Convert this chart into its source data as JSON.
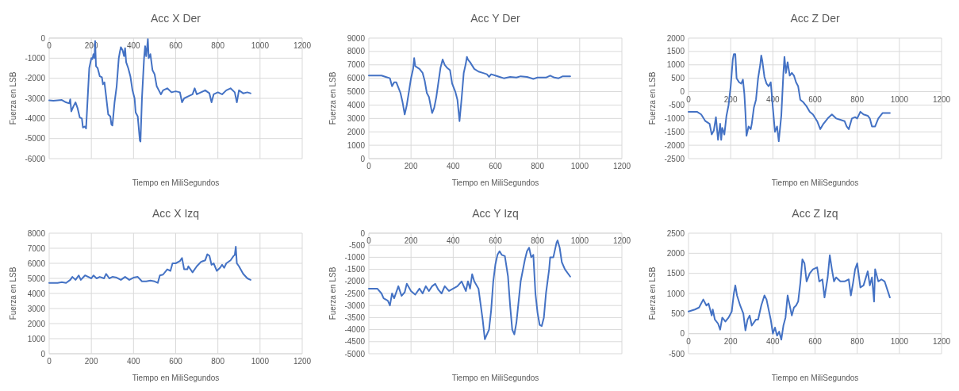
{
  "chart_data": [
    {
      "type": "line",
      "title": "Acc X Der",
      "xlabel": "Tiempo en MiliSegundos",
      "ylabel": "Fuerza en LSB",
      "xlim": [
        0,
        1200
      ],
      "xticks": [
        0,
        200,
        400,
        600,
        800,
        1000,
        1200
      ],
      "ylim": [
        -6000,
        0
      ],
      "yticks": [
        -6000,
        -5000,
        -4000,
        -3000,
        -2000,
        -1000,
        0
      ],
      "grid": true,
      "x": [
        0,
        20,
        40,
        60,
        80,
        95,
        100,
        105,
        115,
        125,
        135,
        145,
        155,
        160,
        170,
        175,
        180,
        190,
        200,
        205,
        210,
        215,
        218,
        222,
        230,
        240,
        250,
        255,
        262,
        270,
        280,
        290,
        295,
        300,
        310,
        320,
        330,
        335,
        340,
        348,
        355,
        360,
        365,
        375,
        385,
        395,
        405,
        410,
        420,
        430,
        433,
        440,
        450,
        455,
        460,
        465,
        468,
        472,
        480,
        490,
        500,
        510,
        520,
        530,
        540,
        560,
        580,
        600,
        620,
        630,
        640,
        660,
        680,
        690,
        700,
        720,
        740,
        760,
        770,
        780,
        800,
        820,
        840,
        860,
        880,
        890,
        900,
        920,
        940,
        955
      ],
      "series": [
        {
          "color": "#4472c4",
          "values": [
            -3100,
            -3120,
            -3100,
            -3080,
            -3200,
            -3250,
            -3050,
            -3650,
            -3400,
            -3200,
            -3500,
            -3950,
            -4000,
            -4450,
            -4400,
            -4500,
            -3500,
            -1500,
            -1000,
            -1050,
            -800,
            -1000,
            -150,
            -1400,
            -1500,
            -1900,
            -1950,
            -2300,
            -2200,
            -2900,
            -3800,
            -3900,
            -4300,
            -4350,
            -3200,
            -2400,
            -1000,
            -700,
            -450,
            -600,
            -900,
            -500,
            -1200,
            -1500,
            -1900,
            -2600,
            -3000,
            -3700,
            -3900,
            -5100,
            -5150,
            -3000,
            -1000,
            -400,
            -900,
            -400,
            -50,
            -1000,
            -800,
            -1600,
            -1800,
            -2400,
            -2600,
            -2800,
            -2600,
            -2500,
            -2700,
            -2650,
            -2700,
            -3200,
            -3000,
            -2900,
            -2800,
            -2500,
            -2800,
            -2700,
            -2600,
            -2750,
            -3200,
            -2800,
            -2700,
            -2800,
            -2600,
            -2500,
            -2700,
            -3200,
            -2600,
            -2750,
            -2700,
            -2750
          ]
        }
      ]
    },
    {
      "type": "line",
      "title": "Acc Y Der",
      "xlabel": "Tiempo en MiliSegundos",
      "ylabel": "Fuerza en LSB",
      "xlim": [
        0,
        1200
      ],
      "xticks": [
        0,
        200,
        400,
        600,
        800,
        1000,
        1200
      ],
      "ylim": [
        0,
        9000
      ],
      "yticks": [
        0,
        1000,
        2000,
        3000,
        4000,
        5000,
        6000,
        7000,
        8000,
        9000
      ],
      "grid": true,
      "x": [
        0,
        60,
        80,
        100,
        110,
        120,
        130,
        140,
        150,
        160,
        170,
        180,
        190,
        200,
        210,
        215,
        220,
        240,
        255,
        265,
        275,
        285,
        300,
        310,
        320,
        330,
        340,
        350,
        360,
        370,
        385,
        395,
        410,
        420,
        430,
        440,
        450,
        460,
        465,
        470,
        480,
        500,
        520,
        540,
        560,
        570,
        580,
        600,
        620,
        640,
        670,
        700,
        720,
        750,
        780,
        800,
        820,
        840,
        860,
        880,
        900,
        920,
        955
      ],
      "series": [
        {
          "color": "#4472c4",
          "values": [
            6200,
            6200,
            6100,
            6000,
            5400,
            5700,
            5700,
            5300,
            4900,
            4200,
            3300,
            4000,
            5000,
            6000,
            6700,
            7500,
            6900,
            6700,
            6400,
            5800,
            4900,
            4600,
            3400,
            3800,
            4600,
            5700,
            6800,
            7400,
            7000,
            6800,
            6600,
            5600,
            5000,
            4400,
            2800,
            4500,
            6400,
            7100,
            7600,
            7400,
            7200,
            6700,
            6500,
            6400,
            6300,
            6100,
            6300,
            6200,
            6100,
            6000,
            6100,
            6050,
            6150,
            6100,
            5950,
            6050,
            6050,
            6050,
            6200,
            6050,
            6000,
            6150,
            6150
          ]
        }
      ]
    },
    {
      "type": "line",
      "title": "Acc Z Der",
      "xlabel": "Tiempo en MiliSegundos",
      "ylabel": "Fuerza en LSB",
      "xlim": [
        0,
        1200
      ],
      "xticks": [
        0,
        200,
        400,
        600,
        800,
        1000,
        1200
      ],
      "ylim": [
        -2500,
        2000
      ],
      "yticks": [
        -2500,
        -2000,
        -1500,
        -1000,
        -500,
        0,
        500,
        1000,
        1500,
        2000
      ],
      "grid": true,
      "x": [
        0,
        40,
        60,
        80,
        100,
        110,
        120,
        130,
        140,
        150,
        155,
        160,
        170,
        180,
        190,
        200,
        210,
        215,
        222,
        228,
        240,
        250,
        258,
        265,
        270,
        275,
        285,
        295,
        300,
        310,
        320,
        330,
        340,
        345,
        350,
        360,
        370,
        380,
        390,
        400,
        410,
        420,
        428,
        440,
        450,
        455,
        462,
        470,
        480,
        490,
        500,
        510,
        520,
        530,
        545,
        560,
        575,
        590,
        610,
        625,
        640,
        660,
        680,
        700,
        720,
        740,
        750,
        760,
        775,
        790,
        800,
        815,
        830,
        850,
        860,
        870,
        885,
        900,
        920,
        935,
        955
      ],
      "series": [
        {
          "color": "#4472c4",
          "values": [
            -750,
            -750,
            -850,
            -1100,
            -1200,
            -1600,
            -1450,
            -950,
            -1800,
            -1200,
            -1800,
            -1350,
            -1600,
            -900,
            -500,
            200,
            1200,
            1400,
            1400,
            500,
            350,
            300,
            450,
            -100,
            -800,
            -1650,
            -1300,
            -1400,
            -1200,
            -600,
            -300,
            500,
            1000,
            1350,
            1150,
            550,
            300,
            200,
            350,
            -600,
            -1500,
            -1300,
            -1850,
            -900,
            700,
            1300,
            700,
            1100,
            600,
            700,
            600,
            350,
            200,
            -300,
            -400,
            -550,
            -750,
            -850,
            -1100,
            -1400,
            -1200,
            -1000,
            -850,
            -1000,
            -1050,
            -1100,
            -1300,
            -1400,
            -1000,
            -950,
            -1000,
            -750,
            -850,
            -900,
            -1000,
            -1300,
            -1300,
            -1000,
            -800,
            -800,
            -800
          ]
        }
      ]
    },
    {
      "type": "line",
      "title": "Acc X Izq",
      "xlabel": "Tiempo en MiliSegundos",
      "ylabel": "Fuerza en LSB",
      "xlim": [
        0,
        1200
      ],
      "xticks": [
        0,
        200,
        400,
        600,
        800,
        1000,
        1200
      ],
      "ylim": [
        0,
        8000
      ],
      "yticks": [
        0,
        1000,
        2000,
        3000,
        4000,
        5000,
        6000,
        7000,
        8000
      ],
      "grid": true,
      "x": [
        0,
        40,
        60,
        80,
        100,
        110,
        125,
        140,
        150,
        170,
        200,
        210,
        225,
        240,
        260,
        270,
        285,
        300,
        320,
        340,
        360,
        380,
        400,
        420,
        440,
        460,
        480,
        500,
        515,
        525,
        540,
        560,
        575,
        585,
        600,
        620,
        630,
        640,
        655,
        660,
        680,
        700,
        720,
        740,
        750,
        760,
        770,
        780,
        795,
        810,
        820,
        830,
        840,
        860,
        875,
        880,
        885,
        890,
        900,
        920,
        940,
        955
      ],
      "series": [
        {
          "color": "#4472c4",
          "values": [
            4700,
            4700,
            4750,
            4700,
            4900,
            5100,
            4900,
            5200,
            4900,
            5200,
            5000,
            5200,
            5000,
            5100,
            5000,
            5300,
            5000,
            5100,
            5050,
            4900,
            5100,
            4900,
            5050,
            5100,
            4800,
            4800,
            4850,
            4800,
            4700,
            5200,
            5250,
            5600,
            5500,
            6000,
            6000,
            6150,
            6350,
            5600,
            5600,
            5800,
            5400,
            5800,
            6100,
            6200,
            6600,
            6500,
            5900,
            6000,
            5500,
            5700,
            5900,
            5700,
            6000,
            6200,
            6500,
            6550,
            7100,
            6000,
            5800,
            5300,
            5000,
            4900
          ]
        }
      ]
    },
    {
      "type": "line",
      "title": "Acc Y Izq",
      "xlabel": "Tiempo en MiliSegundos",
      "ylabel": "Fuerza en LSB",
      "xlim": [
        0,
        1200
      ],
      "xticks": [
        0,
        200,
        400,
        600,
        800,
        1000,
        1200
      ],
      "ylim": [
        -5000,
        0
      ],
      "yticks": [
        -5000,
        -4500,
        -4000,
        -3500,
        -3000,
        -2500,
        -2000,
        -1500,
        -1000,
        -500,
        0
      ],
      "grid": true,
      "x": [
        0,
        20,
        40,
        60,
        70,
        90,
        100,
        110,
        120,
        140,
        155,
        170,
        180,
        200,
        220,
        240,
        255,
        270,
        285,
        300,
        315,
        330,
        345,
        360,
        380,
        400,
        420,
        440,
        460,
        470,
        480,
        490,
        500,
        520,
        540,
        550,
        560,
        570,
        580,
        590,
        600,
        610,
        620,
        630,
        645,
        660,
        670,
        680,
        690,
        700,
        720,
        740,
        750,
        760,
        770,
        780,
        790,
        800,
        810,
        820,
        830,
        840,
        855,
        860,
        875,
        890,
        895,
        905,
        915,
        930,
        955
      ],
      "series": [
        {
          "color": "#4472c4",
          "values": [
            -2300,
            -2300,
            -2300,
            -2500,
            -2700,
            -2800,
            -3000,
            -2500,
            -2700,
            -2200,
            -2600,
            -2450,
            -2100,
            -2400,
            -2550,
            -2300,
            -2500,
            -2200,
            -2400,
            -2200,
            -2100,
            -2350,
            -2500,
            -2200,
            -2400,
            -2300,
            -2200,
            -2000,
            -2400,
            -2000,
            -2300,
            -1700,
            -2000,
            -2300,
            -3600,
            -4400,
            -4200,
            -4000,
            -3200,
            -2000,
            -1300,
            -900,
            -750,
            -900,
            -950,
            -1800,
            -3000,
            -4000,
            -4200,
            -3700,
            -2000,
            -1100,
            -750,
            -600,
            -1000,
            -900,
            -2500,
            -3300,
            -3800,
            -3850,
            -3500,
            -2500,
            -1500,
            -1000,
            -1000,
            -400,
            -300,
            -600,
            -1200,
            -1500,
            -1800
          ]
        }
      ]
    },
    {
      "type": "line",
      "title": "Acc Z Izq",
      "xlabel": "Tiempo en MiliSegundos",
      "ylabel": "Fuerza en LSB",
      "xlim": [
        0,
        1200
      ],
      "xticks": [
        0,
        200,
        400,
        600,
        800,
        1000,
        1200
      ],
      "ylim": [
        -500,
        2500
      ],
      "yticks": [
        -500,
        0,
        500,
        1000,
        1500,
        2000,
        2500
      ],
      "grid": true,
      "x": [
        0,
        30,
        50,
        70,
        85,
        95,
        110,
        115,
        125,
        140,
        150,
        160,
        175,
        190,
        205,
        215,
        222,
        230,
        245,
        260,
        270,
        280,
        290,
        300,
        320,
        330,
        345,
        360,
        370,
        390,
        400,
        410,
        420,
        430,
        440,
        450,
        460,
        470,
        480,
        490,
        500,
        510,
        520,
        530,
        540,
        550,
        560,
        575,
        590,
        610,
        620,
        635,
        645,
        660,
        670,
        680,
        690,
        700,
        720,
        740,
        760,
        770,
        780,
        790,
        800,
        815,
        830,
        850,
        860,
        870,
        880,
        885,
        900,
        915,
        930,
        955
      ],
      "series": [
        {
          "color": "#4472c4",
          "values": [
            550,
            600,
            650,
            850,
            700,
            750,
            450,
            600,
            350,
            250,
            100,
            400,
            300,
            400,
            550,
            1000,
            1200,
            950,
            700,
            500,
            80,
            350,
            450,
            200,
            350,
            350,
            700,
            950,
            850,
            350,
            0,
            150,
            -50,
            50,
            -150,
            200,
            400,
            950,
            700,
            450,
            650,
            700,
            800,
            1250,
            1850,
            1750,
            1300,
            1500,
            1600,
            1650,
            1300,
            1350,
            900,
            1400,
            1950,
            1600,
            1300,
            1400,
            1300,
            1300,
            1350,
            950,
            1250,
            1600,
            1750,
            1150,
            1200,
            1550,
            1200,
            1400,
            800,
            1600,
            1300,
            1350,
            1300,
            900
          ]
        }
      ]
    }
  ]
}
